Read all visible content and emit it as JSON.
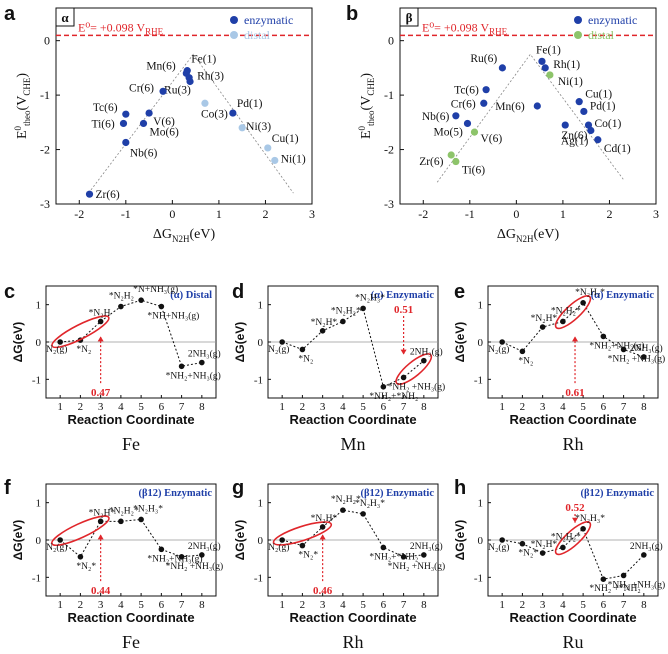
{
  "colors": {
    "enzymatic": "#1f3fa8",
    "distal_a": "#a9c8e6",
    "distal_b": "#8dc46a",
    "limit_line": "#e0262b",
    "title_blue": "#1f3fa8",
    "point": "#111111"
  },
  "chart_data": [
    {
      "panel": "a",
      "type": "scatter",
      "corner_label": "α",
      "xlabel": "ΔG_N2H(eV)",
      "ylabel": "E0_theo(V_CHE)",
      "xlim": [
        -2.5,
        3
      ],
      "ylim": [
        -3,
        0.6
      ],
      "xticks": [
        "-2",
        "-1",
        "0",
        "1",
        "2",
        "3"
      ],
      "yticks": [
        "-3",
        "-2",
        "-1",
        "0"
      ],
      "ref_line": {
        "y": 0.098,
        "label": "E⁰= +0.098 V",
        "sub": "RHE"
      },
      "legend": [
        "enzymatic",
        "distal"
      ],
      "guide": [
        [
          -1.8,
          -2.8
        ],
        [
          0.45,
          -0.25
        ],
        [
          2.6,
          -2.8
        ]
      ],
      "points": [
        {
          "label": "Fe(1)",
          "x": 0.32,
          "y": -0.55,
          "s": "enzymatic"
        },
        {
          "label": "Mn(6)",
          "x": 0.3,
          "y": -0.6,
          "s": "enzymatic"
        },
        {
          "label": "Rh(3)",
          "x": 0.36,
          "y": -0.68,
          "s": "enzymatic"
        },
        {
          "label": "Ru(3)",
          "x": 0.38,
          "y": -0.75,
          "s": "enzymatic"
        },
        {
          "label": "Cr(6)",
          "x": -0.2,
          "y": -0.93,
          "s": "enzymatic"
        },
        {
          "label": "Tc(6)",
          "x": -1.0,
          "y": -1.35,
          "s": "enzymatic"
        },
        {
          "label": "V(6)",
          "x": -0.5,
          "y": -1.33,
          "s": "enzymatic"
        },
        {
          "label": "Ti(6)",
          "x": -1.05,
          "y": -1.52,
          "s": "enzymatic"
        },
        {
          "label": "Mo(6)",
          "x": -0.62,
          "y": -1.52,
          "s": "enzymatic"
        },
        {
          "label": "Nb(6)",
          "x": -1.0,
          "y": -1.87,
          "s": "enzymatic"
        },
        {
          "label": "Zr(6)",
          "x": -1.78,
          "y": -2.82,
          "s": "enzymatic"
        },
        {
          "label": "Pd(1)",
          "x": 1.3,
          "y": -1.33,
          "s": "enzymatic"
        },
        {
          "label": "Co(3)",
          "x": 0.7,
          "y": -1.15,
          "s": "distal"
        },
        {
          "label": "Ni(3)",
          "x": 1.5,
          "y": -1.6,
          "s": "distal"
        },
        {
          "label": "Cu(1)",
          "x": 2.05,
          "y": -1.97,
          "s": "distal"
        },
        {
          "label": "Ni(1)",
          "x": 2.2,
          "y": -2.2,
          "s": "distal"
        }
      ]
    },
    {
      "panel": "b",
      "type": "scatter",
      "corner_label": "β",
      "xlabel": "ΔG_N2H(eV)",
      "ylabel": "E0_theo(V_CHE)",
      "xlim": [
        -2.5,
        3
      ],
      "ylim": [
        -3,
        0.6
      ],
      "xticks": [
        "-2",
        "-1",
        "0",
        "1",
        "2",
        "3"
      ],
      "yticks": [
        "-3",
        "-2",
        "-1",
        "0"
      ],
      "ref_line": {
        "y": 0.098,
        "label": "E⁰= +0.098 V",
        "sub": "RHE"
      },
      "legend": [
        "enzymatic",
        "distal"
      ],
      "guide": [
        [
          -1.7,
          -2.6
        ],
        [
          0.3,
          -0.25
        ],
        [
          2.3,
          -2.55
        ]
      ],
      "points": [
        {
          "label": "Fe(1)",
          "x": 0.55,
          "y": -0.38,
          "s": "enzymatic"
        },
        {
          "label": "Rh(1)",
          "x": 0.62,
          "y": -0.5,
          "s": "enzymatic"
        },
        {
          "label": "Ni(1)",
          "x": 0.72,
          "y": -0.63,
          "s": "distal"
        },
        {
          "label": "Ru(6)",
          "x": -0.3,
          "y": -0.5,
          "s": "enzymatic"
        },
        {
          "label": "Tc(6)",
          "x": -0.65,
          "y": -0.9,
          "s": "enzymatic"
        },
        {
          "label": "Cr(6)",
          "x": -0.7,
          "y": -1.15,
          "s": "enzymatic"
        },
        {
          "label": "Mn(6)",
          "x": 0.45,
          "y": -1.2,
          "s": "enzymatic"
        },
        {
          "label": "Nb(6)",
          "x": -1.3,
          "y": -1.38,
          "s": "enzymatic"
        },
        {
          "label": "Mo(5)",
          "x": -1.05,
          "y": -1.52,
          "s": "enzymatic"
        },
        {
          "label": "V(6)",
          "x": -0.9,
          "y": -1.68,
          "s": "distal"
        },
        {
          "label": "Cu(1)",
          "x": 1.35,
          "y": -1.12,
          "s": "enzymatic"
        },
        {
          "label": "Pd(1)",
          "x": 1.45,
          "y": -1.3,
          "s": "enzymatic"
        },
        {
          "label": "Zn(6)",
          "x": 1.05,
          "y": -1.55,
          "s": "enzymatic"
        },
        {
          "label": "Co(1)",
          "x": 1.55,
          "y": -1.55,
          "s": "enzymatic"
        },
        {
          "label": "Ag(1)",
          "x": 1.6,
          "y": -1.65,
          "s": "enzymatic"
        },
        {
          "label": "Cd(1)",
          "x": 1.75,
          "y": -1.82,
          "s": "enzymatic"
        },
        {
          "label": "Zr(6)",
          "x": -1.4,
          "y": -2.1,
          "s": "distal"
        },
        {
          "label": "Ti(6)",
          "x": -1.3,
          "y": -2.22,
          "s": "distal"
        }
      ]
    },
    {
      "panel": "c",
      "type": "line",
      "title": "(α) Distal",
      "metal": "Fe",
      "xlabel": "Reaction Coordinate",
      "ylabel": "ΔG(eV)",
      "ylim": [
        -1.5,
        1.5
      ],
      "x": [
        1,
        2,
        3,
        4,
        5,
        6,
        7,
        8
      ],
      "y": [
        0,
        0.05,
        0.55,
        0.95,
        1.12,
        0.95,
        -0.65,
        -0.55
      ],
      "point_labels": [
        "N₂(g)",
        "*N₂",
        "*N₂H",
        "*N₂H₂",
        "*N+NH₃(g)",
        "*NH+NH₃(g)",
        "*NH₂+NH₃(g)",
        "2NH₃(g)"
      ],
      "annotation": "0.47",
      "ellipse_steps": [
        1,
        3
      ]
    },
    {
      "panel": "d",
      "type": "line",
      "title": "(α) Enzymatic",
      "metal": "Mn",
      "xlabel": "Reaction Coordinate",
      "ylabel": "ΔG(eV)",
      "ylim": [
        -1.5,
        1.5
      ],
      "x": [
        1,
        2,
        3,
        4,
        5,
        6,
        7,
        8
      ],
      "y": [
        0,
        -0.2,
        0.3,
        0.55,
        0.9,
        -1.2,
        -0.95,
        -0.5
      ],
      "point_labels": [
        "N₂(g)",
        "*N₂",
        "*N₂H*",
        "*N₂H₂*",
        "*N₂H₃*",
        "*NH₂+*NH₂",
        "*NH₂ +NH₃(g)",
        "2NH₃(g)"
      ],
      "annotation": "0.51",
      "ellipse_steps": [
        7,
        8
      ]
    },
    {
      "panel": "e",
      "type": "line",
      "title": "(α) Enzymatic",
      "metal": "Rh",
      "xlabel": "Reaction Coordinate",
      "ylabel": "ΔG(eV)",
      "ylim": [
        -1.5,
        1.5
      ],
      "x": [
        1,
        2,
        3,
        4,
        5,
        6,
        7,
        8
      ],
      "y": [
        0,
        -0.25,
        0.4,
        0.55,
        1.05,
        0.15,
        -0.2,
        -0.4
      ],
      "point_labels": [
        "N₂(g)",
        "*N₂",
        "*N₂H*",
        "*N₂H₂*",
        "*N₂H₃*",
        "*NH₂+NH₃(g)",
        "*NH₂ +NH₃(g)",
        "2NH₃(g)"
      ],
      "annotation": "0.61",
      "ellipse_steps": [
        4,
        5
      ]
    },
    {
      "panel": "f",
      "type": "line",
      "title": "(β12) Enzymatic",
      "metal": "Fe",
      "xlabel": "Reaction Coordinate",
      "ylabel": "ΔG(eV)",
      "ylim": [
        -1.5,
        1.5
      ],
      "x": [
        1,
        2,
        3,
        4,
        5,
        6,
        7,
        8
      ],
      "y": [
        0,
        -0.45,
        0.5,
        0.5,
        0.55,
        -0.25,
        -0.45,
        -0.4
      ],
      "point_labels": [
        "N₂(g)",
        "*N₂*",
        "*N₂H*",
        "*N₂H₂*",
        "*N₂H₃*",
        "*NH₂+NH₃(g)",
        "*NH₂ +NH₃(g)",
        "2NH₃(g)"
      ],
      "annotation": "0.44",
      "ellipse_steps": [
        1,
        3
      ]
    },
    {
      "panel": "g",
      "type": "line",
      "title": "(β12) Enzymatic",
      "metal": "Rh",
      "xlabel": "Reaction Coordinate",
      "ylabel": "ΔG(eV)",
      "ylim": [
        -1.5,
        1.5
      ],
      "x": [
        1,
        2,
        3,
        4,
        5,
        6,
        7,
        8
      ],
      "y": [
        0,
        -0.15,
        0.35,
        0.8,
        0.7,
        -0.2,
        -0.45,
        -0.4
      ],
      "point_labels": [
        "N₂(g)",
        "*N₂*",
        "*N₂H*",
        "*N₂H₂*",
        "*N₂H₃*",
        "*NH₂+*NH₂",
        "*NH₂ +NH₃(g)",
        "2NH₃(g)"
      ],
      "annotation": "0.46",
      "ellipse_steps": [
        1,
        3
      ]
    },
    {
      "panel": "h",
      "type": "line",
      "title": "(β12) Enzymatic",
      "metal": "Ru",
      "xlabel": "Reaction Coordinate",
      "ylabel": "ΔG(eV)",
      "ylim": [
        -1.5,
        1.5
      ],
      "x": [
        1,
        2,
        3,
        4,
        5,
        6,
        7,
        8
      ],
      "y": [
        0,
        -0.1,
        -0.35,
        -0.2,
        0.3,
        -1.05,
        -0.95,
        -0.4
      ],
      "point_labels": [
        "N₂(g)",
        "*N₂*",
        "*N₂H*",
        "*N₂H₂*",
        "*N₂H₃*",
        "*NH₂ +*NH₂",
        "*NH₂ +NH₃(g)",
        "2NH₃(g)"
      ],
      "annotation": "0.52",
      "ellipse_steps": [
        4,
        5
      ]
    }
  ]
}
